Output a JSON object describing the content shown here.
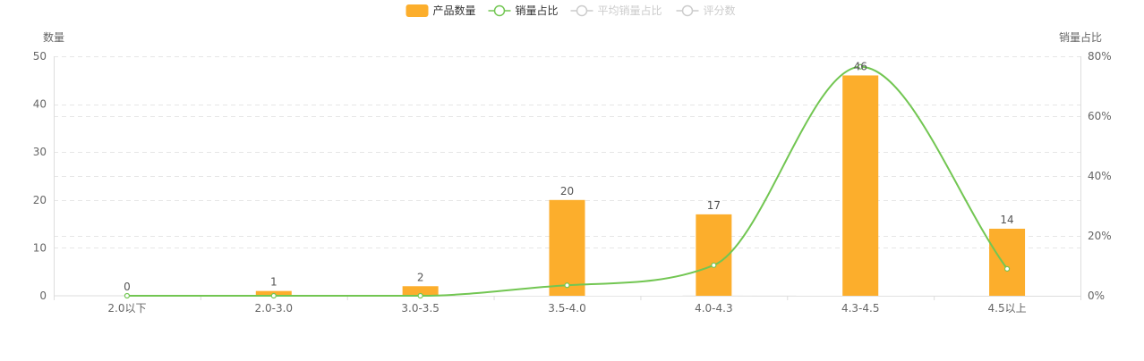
{
  "legend": {
    "items": [
      {
        "label": "产品数量",
        "kind": "bar",
        "active": true
      },
      {
        "label": "销量占比",
        "kind": "line",
        "active": true
      },
      {
        "label": "平均销量占比",
        "kind": "line",
        "active": false
      },
      {
        "label": "评分数",
        "kind": "line",
        "active": false
      }
    ]
  },
  "colors": {
    "bar": "#FCAE2C",
    "line": "#72C652",
    "grid": "#E6E6E6",
    "axis": "#DDDDDD",
    "text": "#666666",
    "label": "#555555",
    "inactive": "#CCCCCC"
  },
  "chart_data": {
    "type": "bar",
    "categories": [
      "2.0以下",
      "2.0-3.0",
      "3.0-3.5",
      "3.5-4.0",
      "4.0-4.3",
      "4.3-4.5",
      "4.5以上"
    ],
    "series": [
      {
        "name": "产品数量",
        "type": "bar",
        "axis": "left",
        "values": [
          0,
          1,
          2,
          20,
          17,
          46,
          14
        ],
        "labels": [
          "0",
          "1",
          "2",
          "20",
          "17",
          "46",
          "14"
        ]
      },
      {
        "name": "销量占比",
        "type": "line",
        "axis": "right",
        "smooth": true,
        "values": [
          0,
          0,
          0,
          3.5,
          10.2,
          76.5,
          9
        ]
      }
    ],
    "y_left": {
      "label": "数量",
      "min": 0,
      "max": 50,
      "ticks": [
        "0",
        "10",
        "20",
        "30",
        "40",
        "50"
      ]
    },
    "y_right": {
      "label": "销量占比",
      "min": 0,
      "max": 80,
      "ticks": [
        "0%",
        "20%",
        "40%",
        "60%",
        "80%"
      ]
    },
    "grid": "dashed horizontal",
    "legend_position": "top-center"
  }
}
